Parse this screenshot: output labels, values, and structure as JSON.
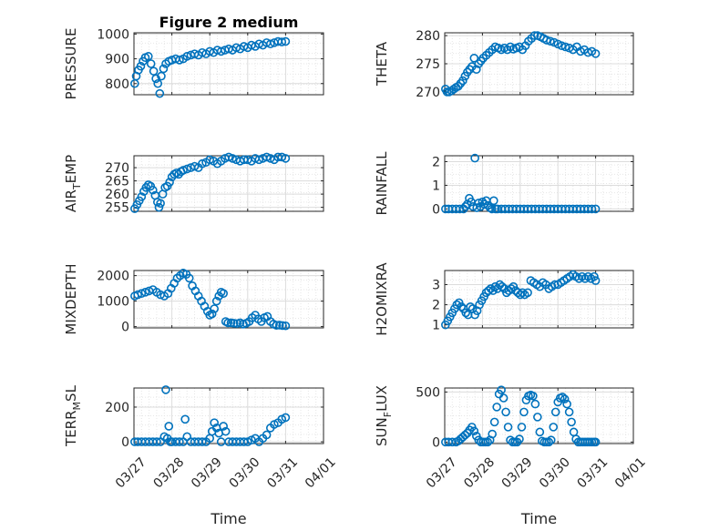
{
  "figure_title": "Figure 2 medium",
  "chart_data": [
    {
      "type": "scatter",
      "title": "Figure 2 medium",
      "ylabel": "PRESSURE",
      "ylabel_main": "",
      "ylabel_sub": "",
      "ylabel_rest": "",
      "xlabel": "",
      "xlim": [
        0,
        5
      ],
      "ylim": [
        755,
        1005
      ],
      "yticks": [
        800,
        900,
        1000
      ],
      "xticks": [],
      "x_tick_labels": [],
      "color": "#0072BD",
      "x": [
        0.02,
        0.06,
        0.12,
        0.18,
        0.24,
        0.3,
        0.38,
        0.45,
        0.52,
        0.58,
        0.63,
        0.68,
        0.72,
        0.78,
        0.84,
        0.92,
        1.0,
        1.1,
        1.2,
        1.3,
        1.4,
        1.5,
        1.6,
        1.7,
        1.8,
        1.9,
        2.0,
        2.1,
        2.2,
        2.3,
        2.4,
        2.5,
        2.6,
        2.7,
        2.8,
        2.9,
        3.0,
        3.1,
        3.2,
        3.3,
        3.4,
        3.5,
        3.6,
        3.7,
        3.8,
        3.9,
        4.0
      ],
      "values": [
        800,
        830,
        855,
        870,
        890,
        905,
        910,
        880,
        850,
        820,
        800,
        760,
        830,
        860,
        880,
        890,
        895,
        900,
        895,
        900,
        910,
        915,
        920,
        915,
        925,
        920,
        930,
        925,
        935,
        930,
        935,
        940,
        935,
        945,
        940,
        950,
        945,
        955,
        950,
        960,
        955,
        965,
        960,
        965,
        970,
        968,
        970
      ]
    },
    {
      "type": "scatter",
      "title": "",
      "ylabel": "THETA",
      "ylabel_main": "",
      "ylabel_sub": "",
      "ylabel_rest": "",
      "xlabel": "",
      "xlim": [
        0,
        5
      ],
      "ylim": [
        269.5,
        280.5
      ],
      "yticks": [
        270,
        275,
        280
      ],
      "xticks": [],
      "x_tick_labels": [],
      "color": "#0072BD",
      "x": [
        0.02,
        0.06,
        0.12,
        0.18,
        0.24,
        0.3,
        0.36,
        0.42,
        0.48,
        0.54,
        0.6,
        0.66,
        0.72,
        0.78,
        0.84,
        0.9,
        0.96,
        1.02,
        1.1,
        1.18,
        1.26,
        1.34,
        1.42,
        1.5,
        1.58,
        1.66,
        1.74,
        1.82,
        1.9,
        1.98,
        2.06,
        2.14,
        2.22,
        2.3,
        2.38,
        2.46,
        2.54,
        2.62,
        2.7,
        2.8,
        2.9,
        3.0,
        3.1,
        3.2,
        3.3,
        3.4,
        3.5,
        3.6,
        3.7,
        3.8,
        3.9,
        4.0
      ],
      "values": [
        270.5,
        270,
        270,
        270.2,
        270.5,
        270.8,
        271,
        271.5,
        272,
        272.8,
        273.5,
        274,
        274.5,
        276,
        274,
        275,
        275.5,
        276,
        276.5,
        277,
        277.5,
        278,
        277.8,
        277.5,
        277.8,
        277.5,
        278,
        277.6,
        277.8,
        278,
        277.5,
        278.2,
        279,
        279.5,
        280,
        280,
        279.8,
        279.5,
        279.2,
        279,
        278.8,
        278.5,
        278.2,
        278,
        277.8,
        277.5,
        278,
        277.2,
        277.5,
        277,
        277.2,
        276.8
      ]
    },
    {
      "type": "scatter",
      "title": "",
      "ylabel": "AIR_TEMP",
      "ylabel_main": "AIR",
      "ylabel_sub": "T",
      "ylabel_rest": "EMP",
      "xlabel": "",
      "xlim": [
        0,
        5
      ],
      "ylim": [
        253.5,
        274.5
      ],
      "yticks": [
        255,
        260,
        265,
        270
      ],
      "xticks": [],
      "x_tick_labels": [],
      "color": "#0072BD",
      "x": [
        0.02,
        0.08,
        0.14,
        0.2,
        0.26,
        0.32,
        0.38,
        0.44,
        0.5,
        0.56,
        0.62,
        0.66,
        0.7,
        0.76,
        0.82,
        0.88,
        0.94,
        1.0,
        1.06,
        1.12,
        1.18,
        1.24,
        1.3,
        1.4,
        1.5,
        1.6,
        1.7,
        1.8,
        1.9,
        2.0,
        2.1,
        2.2,
        2.3,
        2.4,
        2.5,
        2.6,
        2.7,
        2.8,
        2.9,
        3.0,
        3.1,
        3.2,
        3.3,
        3.4,
        3.5,
        3.6,
        3.7,
        3.8,
        3.9,
        4.0
      ],
      "values": [
        254.5,
        256,
        257.5,
        259,
        261,
        262.5,
        263.5,
        263,
        261.5,
        259.5,
        257,
        255,
        256.5,
        260,
        262.5,
        263,
        264.5,
        266.5,
        267.5,
        268,
        267.5,
        268.5,
        269,
        269.5,
        270,
        270.5,
        270,
        271.5,
        272,
        273,
        272.5,
        271.5,
        272.5,
        273.5,
        274,
        273.5,
        273,
        272.5,
        273,
        273,
        272.5,
        273.5,
        273,
        273.5,
        274,
        273.5,
        273,
        274,
        274,
        273.5
      ]
    },
    {
      "type": "scatter",
      "title": "",
      "ylabel": "RAINFALL",
      "ylabel_main": "",
      "ylabel_sub": "",
      "ylabel_rest": "",
      "xlabel": "",
      "xlim": [
        0,
        5
      ],
      "ylim": [
        -0.1,
        2.25
      ],
      "yticks": [
        0,
        1,
        2
      ],
      "xticks": [],
      "x_tick_labels": [],
      "color": "#0072BD",
      "x": [
        0.02,
        0.1,
        0.2,
        0.3,
        0.4,
        0.5,
        0.55,
        0.6,
        0.65,
        0.7,
        0.75,
        0.8,
        0.85,
        0.9,
        0.95,
        1.0,
        1.05,
        1.1,
        1.15,
        1.2,
        1.25,
        1.3,
        1.35,
        1.4,
        1.5,
        1.6,
        1.7,
        1.8,
        1.9,
        2.0,
        2.1,
        2.2,
        2.3,
        2.4,
        2.5,
        2.6,
        2.7,
        2.8,
        2.9,
        3.0,
        3.1,
        3.2,
        3.3,
        3.4,
        3.5,
        3.6,
        3.7,
        3.8,
        3.9,
        4.0
      ],
      "values": [
        0,
        0,
        0,
        0,
        0,
        0,
        0.1,
        0.2,
        0.45,
        0.3,
        0.1,
        2.15,
        0.05,
        0.25,
        0.1,
        0.3,
        0.2,
        0.35,
        0.15,
        0.05,
        0,
        0.35,
        0,
        0,
        0,
        0,
        0,
        0,
        0,
        0,
        0,
        0,
        0,
        0,
        0,
        0,
        0,
        0,
        0,
        0,
        0,
        0,
        0,
        0,
        0,
        0,
        0,
        0,
        0,
        0
      ]
    },
    {
      "type": "scatter",
      "title": "",
      "ylabel": "MIXDEPTH",
      "ylabel_main": "",
      "ylabel_sub": "",
      "ylabel_rest": "",
      "xlabel": "",
      "xlim": [
        0,
        5
      ],
      "ylim": [
        -50,
        2200
      ],
      "yticks": [
        0,
        1000,
        2000
      ],
      "xticks": [],
      "x_tick_labels": [],
      "color": "#0072BD",
      "x": [
        0.02,
        0.1,
        0.2,
        0.3,
        0.4,
        0.5,
        0.6,
        0.7,
        0.8,
        0.9,
        0.98,
        1.06,
        1.14,
        1.22,
        1.3,
        1.38,
        1.46,
        1.54,
        1.62,
        1.7,
        1.78,
        1.86,
        1.94,
        2.0,
        2.06,
        2.12,
        2.18,
        2.24,
        2.3,
        2.36,
        2.42,
        2.48,
        2.56,
        2.64,
        2.72,
        2.8,
        2.88,
        2.96,
        3.04,
        3.12,
        3.2,
        3.28,
        3.36,
        3.44,
        3.52,
        3.6,
        3.68,
        3.76,
        3.84,
        3.92,
        4.0
      ],
      "values": [
        1200,
        1250,
        1300,
        1350,
        1400,
        1450,
        1350,
        1250,
        1200,
        1300,
        1500,
        1700,
        1900,
        2000,
        2100,
        2050,
        1900,
        1600,
        1400,
        1200,
        1000,
        800,
        600,
        450,
        500,
        700,
        1000,
        1200,
        1350,
        1300,
        200,
        150,
        150,
        130,
        120,
        150,
        100,
        130,
        200,
        350,
        450,
        300,
        200,
        350,
        400,
        200,
        100,
        50,
        60,
        40,
        30
      ]
    },
    {
      "type": "scatter",
      "title": "",
      "ylabel": "H2OMIXRA",
      "ylabel_main": "",
      "ylabel_sub": "",
      "ylabel_rest": "",
      "xlabel": "",
      "xlim": [
        0,
        5
      ],
      "ylim": [
        0.85,
        3.7
      ],
      "yticks": [
        1,
        2,
        3
      ],
      "xticks": [],
      "x_tick_labels": [],
      "color": "#0072BD",
      "x": [
        0.02,
        0.08,
        0.14,
        0.2,
        0.26,
        0.32,
        0.38,
        0.44,
        0.5,
        0.56,
        0.62,
        0.68,
        0.74,
        0.8,
        0.86,
        0.92,
        0.98,
        1.04,
        1.1,
        1.16,
        1.22,
        1.28,
        1.34,
        1.4,
        1.46,
        1.52,
        1.58,
        1.64,
        1.7,
        1.76,
        1.82,
        1.88,
        1.94,
        2.0,
        2.06,
        2.12,
        2.2,
        2.28,
        2.36,
        2.44,
        2.52,
        2.6,
        2.68,
        2.76,
        2.84,
        2.92,
        3.0,
        3.08,
        3.16,
        3.24,
        3.32,
        3.4,
        3.48,
        3.56,
        3.64,
        3.72,
        3.8,
        3.88,
        3.96,
        4.0
      ],
      "values": [
        1.0,
        1.2,
        1.4,
        1.6,
        1.8,
        2.0,
        2.1,
        1.9,
        1.8,
        1.6,
        1.5,
        1.9,
        1.8,
        1.5,
        1.7,
        2.0,
        2.2,
        2.4,
        2.6,
        2.7,
        2.8,
        2.7,
        2.9,
        2.8,
        3.0,
        2.9,
        2.8,
        2.6,
        2.7,
        2.8,
        2.9,
        2.7,
        2.6,
        2.5,
        2.6,
        2.5,
        2.6,
        3.2,
        3.1,
        3.0,
        2.9,
        3.1,
        3.0,
        2.8,
        2.9,
        3.0,
        3.0,
        3.1,
        3.2,
        3.3,
        3.4,
        3.5,
        3.4,
        3.3,
        3.4,
        3.3,
        3.4,
        3.3,
        3.4,
        3.2
      ]
    },
    {
      "type": "scatter",
      "title": "",
      "ylabel": "TERR_MSL",
      "ylabel_main": "TERR",
      "ylabel_sub": "M",
      "ylabel_rest": "SL",
      "xlabel": "Time",
      "xlim": [
        0,
        5
      ],
      "ylim": [
        -10,
        310
      ],
      "yticks": [
        0,
        200
      ],
      "xticks": [
        0,
        1,
        2,
        3,
        4,
        5
      ],
      "x_tick_labels": [
        "03/27",
        "03/28",
        "03/29",
        "03/30",
        "03/31",
        "04/01"
      ],
      "color": "#0072BD",
      "x": [
        0.02,
        0.1,
        0.2,
        0.3,
        0.4,
        0.5,
        0.6,
        0.7,
        0.8,
        0.84,
        0.88,
        0.92,
        0.96,
        1.0,
        1.1,
        1.2,
        1.3,
        1.35,
        1.4,
        1.5,
        1.6,
        1.7,
        1.8,
        1.9,
        2.0,
        2.06,
        2.12,
        2.18,
        2.24,
        2.3,
        2.36,
        2.42,
        2.5,
        2.6,
        2.7,
        2.8,
        2.9,
        3.0,
        3.1,
        3.2,
        3.3,
        3.4,
        3.5,
        3.6,
        3.7,
        3.8,
        3.9,
        4.0
      ],
      "values": [
        0,
        0,
        0,
        0,
        0,
        0,
        0,
        0,
        30,
        300,
        20,
        90,
        0,
        0,
        0,
        0,
        0,
        130,
        30,
        0,
        0,
        0,
        0,
        0,
        20,
        60,
        110,
        80,
        50,
        0,
        90,
        60,
        0,
        0,
        0,
        0,
        0,
        0,
        10,
        20,
        0,
        20,
        40,
        80,
        100,
        110,
        130,
        140
      ]
    },
    {
      "type": "scatter",
      "title": "",
      "ylabel": "SUN_FLUX",
      "ylabel_main": "SUN",
      "ylabel_sub": "F",
      "ylabel_rest": "LUX",
      "xlabel": "Time",
      "xlim": [
        0,
        5
      ],
      "ylim": [
        -15,
        540
      ],
      "yticks": [
        0,
        500
      ],
      "xticks": [
        0,
        1,
        2,
        3,
        4,
        5
      ],
      "x_tick_labels": [
        "03/27",
        "03/28",
        "03/29",
        "03/30",
        "03/31",
        "04/01"
      ],
      "color": "#0072BD",
      "x": [
        0.02,
        0.1,
        0.2,
        0.3,
        0.36,
        0.42,
        0.48,
        0.54,
        0.6,
        0.66,
        0.72,
        0.78,
        0.84,
        0.9,
        0.96,
        1.02,
        1.08,
        1.14,
        1.2,
        1.26,
        1.32,
        1.38,
        1.44,
        1.5,
        1.56,
        1.62,
        1.68,
        1.74,
        1.8,
        1.86,
        1.92,
        1.98,
        2.04,
        2.1,
        2.16,
        2.22,
        2.28,
        2.34,
        2.4,
        2.46,
        2.52,
        2.58,
        2.64,
        2.7,
        2.76,
        2.82,
        2.88,
        2.94,
        3.0,
        3.06,
        3.12,
        3.18,
        3.24,
        3.3,
        3.36,
        3.42,
        3.48,
        3.54,
        3.6,
        3.66,
        3.72,
        3.78,
        3.84,
        3.9,
        3.96,
        4.0
      ],
      "values": [
        0,
        0,
        0,
        0,
        10,
        30,
        50,
        70,
        90,
        120,
        150,
        110,
        60,
        20,
        0,
        0,
        0,
        0,
        20,
        80,
        200,
        350,
        480,
        520,
        440,
        300,
        150,
        20,
        0,
        0,
        0,
        30,
        150,
        300,
        420,
        460,
        470,
        460,
        380,
        250,
        100,
        10,
        0,
        0,
        0,
        20,
        150,
        300,
        400,
        440,
        450,
        430,
        380,
        300,
        200,
        100,
        30,
        0,
        0,
        0,
        0,
        0,
        0,
        0,
        0,
        0
      ]
    }
  ]
}
